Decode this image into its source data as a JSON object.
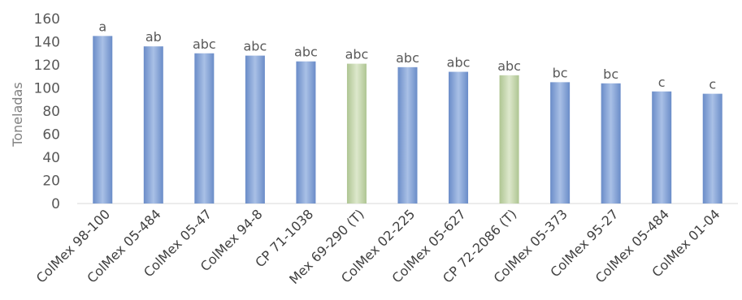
{
  "chart_data": {
    "type": "bar",
    "title": "",
    "xlabel": "",
    "ylabel": "Toneladas",
    "ylim": [
      0,
      160
    ],
    "yticks": [
      0,
      20,
      40,
      60,
      80,
      100,
      120,
      140,
      160
    ],
    "grid": false,
    "categories": [
      "ColMex 98-100",
      "ColMex 05-484",
      "ColMex 05-47",
      "ColMex 94-8",
      "CP 71-1038",
      "Mex 69-290 (T)",
      "ColMex 02-225",
      "ColMex 05-627",
      "CP 72-2086 (T)",
      "ColMex 05-373",
      "ColMex 95-27",
      "ColMex 05-484",
      "ColMex 01-04"
    ],
    "values": [
      145,
      136,
      130,
      128,
      123,
      121,
      118,
      114,
      111,
      105,
      104,
      97,
      95
    ],
    "significance_labels": [
      "a",
      "ab",
      "abc",
      "abc",
      "abc",
      "abc",
      "abc",
      "abc",
      "abc",
      "bc",
      "bc",
      "c",
      "c"
    ],
    "bar_colors": [
      "#7f9fd3",
      "#7f9fd3",
      "#7f9fd3",
      "#7f9fd3",
      "#7f9fd3",
      "#c3d6a8",
      "#7f9fd3",
      "#7f9fd3",
      "#c3d6a8",
      "#7f9fd3",
      "#7f9fd3",
      "#7f9fd3",
      "#7f9fd3"
    ],
    "axis_color": "#d9d9d9"
  }
}
